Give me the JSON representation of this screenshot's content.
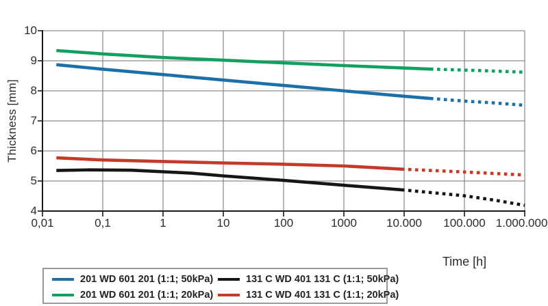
{
  "chart_data": {
    "type": "line",
    "title": "",
    "xlabel": "Time [h]",
    "ylabel": "Thickness [mm]",
    "x_scale": "log",
    "xlim": [
      0.01,
      1000000
    ],
    "ylim": [
      4,
      10
    ],
    "grid": true,
    "legend_position": "bottom-left",
    "x_tick_values": [
      0.01,
      0.1,
      1,
      10,
      100,
      1000,
      10000,
      100000,
      1000000
    ],
    "x_tick_labels": [
      "0,01",
      "0,1",
      "1",
      "10",
      "100",
      "1000",
      "10.000",
      "100.000",
      "1.000.000"
    ],
    "y_tick_values": [
      4,
      5,
      6,
      7,
      8,
      9,
      10
    ],
    "y_tick_labels": [
      "4",
      "5",
      "6",
      "7",
      "8",
      "9",
      "10"
    ],
    "colors": {
      "grid": "#8a8a8a",
      "axis": "#1a1a1a",
      "text": "#2b2b2b",
      "legend_border": "#9a9a9a"
    },
    "series": [
      {
        "name": "201 WD 601 201 (1:1; 50kPa)",
        "color": "#1C70A8",
        "solid": [
          [
            0.017,
            8.87
          ],
          [
            0.1,
            8.72
          ],
          [
            1,
            8.54
          ],
          [
            10,
            8.36
          ],
          [
            100,
            8.18
          ],
          [
            1000,
            8.0
          ],
          [
            10000,
            7.82
          ],
          [
            30000,
            7.74
          ]
        ],
        "dotted": [
          [
            30000,
            7.74
          ],
          [
            100000,
            7.66
          ],
          [
            300000,
            7.6
          ],
          [
            1000000,
            7.52
          ]
        ]
      },
      {
        "name": "201 WD 601 201 (1:1; 20kPa)",
        "color": "#12A061",
        "solid": [
          [
            0.017,
            9.34
          ],
          [
            0.1,
            9.23
          ],
          [
            1,
            9.11
          ],
          [
            10,
            9.02
          ],
          [
            100,
            8.93
          ],
          [
            1000,
            8.84
          ],
          [
            10000,
            8.76
          ],
          [
            30000,
            8.72
          ]
        ],
        "dotted": [
          [
            30000,
            8.72
          ],
          [
            100000,
            8.69
          ],
          [
            300000,
            8.66
          ],
          [
            1000000,
            8.62
          ]
        ]
      },
      {
        "name": "131 C WD 401 131 C (1:1; 50kPa)",
        "color": "#161616",
        "solid": [
          [
            0.017,
            5.35
          ],
          [
            0.06,
            5.37
          ],
          [
            0.3,
            5.36
          ],
          [
            1,
            5.31
          ],
          [
            3,
            5.26
          ],
          [
            10,
            5.17
          ],
          [
            100,
            5.02
          ],
          [
            1000,
            4.86
          ],
          [
            10000,
            4.7
          ]
        ],
        "dotted": [
          [
            10000,
            4.7
          ],
          [
            30000,
            4.61
          ],
          [
            100000,
            4.51
          ],
          [
            300000,
            4.37
          ],
          [
            1000000,
            4.19
          ]
        ]
      },
      {
        "name": "131 C WD 401 131 C (1:1; 20kPa)",
        "color": "#C43A28",
        "solid": [
          [
            0.017,
            5.77
          ],
          [
            0.1,
            5.7
          ],
          [
            1,
            5.65
          ],
          [
            10,
            5.6
          ],
          [
            100,
            5.56
          ],
          [
            1000,
            5.5
          ],
          [
            10000,
            5.39
          ]
        ],
        "dotted": [
          [
            10000,
            5.39
          ],
          [
            100000,
            5.3
          ],
          [
            1000000,
            5.2
          ]
        ]
      }
    ],
    "legend_dom_order": [
      0,
      2,
      1,
      3
    ]
  }
}
